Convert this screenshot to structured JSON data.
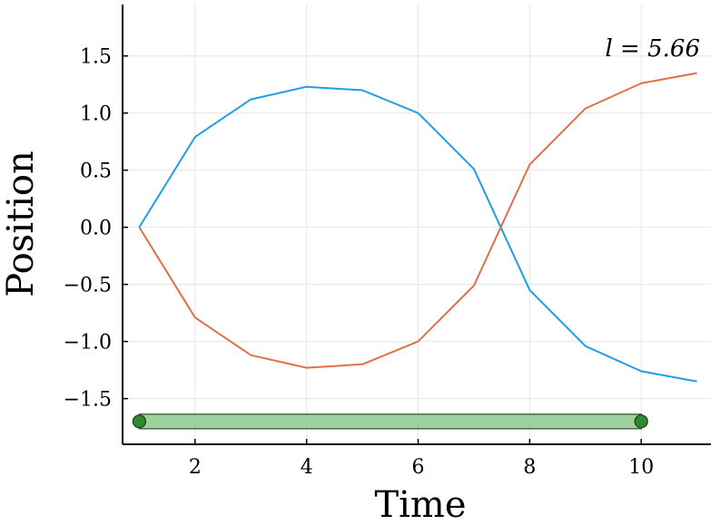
{
  "chart_data": {
    "type": "line",
    "xlabel": "Time",
    "ylabel": "Position",
    "xlim": [
      0.7,
      11.25
    ],
    "ylim": [
      -1.9,
      1.95
    ],
    "xticks": [
      2,
      4,
      6,
      8,
      10
    ],
    "yticks": [
      -1.5,
      -1.0,
      -0.5,
      0.0,
      0.5,
      1.0,
      1.5
    ],
    "xtick_labels": [
      "2",
      "4",
      "6",
      "8",
      "10"
    ],
    "ytick_labels": [
      "−1.5",
      "−1.0",
      "−0.5",
      "0.0",
      "0.5",
      "1.0",
      "1.5"
    ],
    "grid": true,
    "annotation": {
      "text": "l = 5.66",
      "x": 10.3,
      "y": 1.55
    },
    "series": [
      {
        "color": "#1f9ee8",
        "x": [
          1,
          2,
          3,
          4,
          5,
          6,
          7,
          8,
          9,
          10,
          11
        ],
        "y": [
          0.0,
          0.79,
          1.12,
          1.23,
          1.2,
          1.0,
          0.51,
          -0.55,
          -1.04,
          -1.26,
          -1.35
        ]
      },
      {
        "color": "#e0704a",
        "x": [
          1,
          2,
          3,
          4,
          5,
          6,
          7,
          8,
          9,
          10,
          11
        ],
        "y": [
          0.0,
          -0.79,
          -1.12,
          -1.23,
          -1.2,
          -1.0,
          -0.51,
          0.55,
          1.04,
          1.26,
          1.35
        ]
      }
    ],
    "interval": {
      "start": 1,
      "end": 10,
      "y": -1.7,
      "fill": "#7fc27f",
      "marker_color": "#2e8b2e"
    }
  }
}
